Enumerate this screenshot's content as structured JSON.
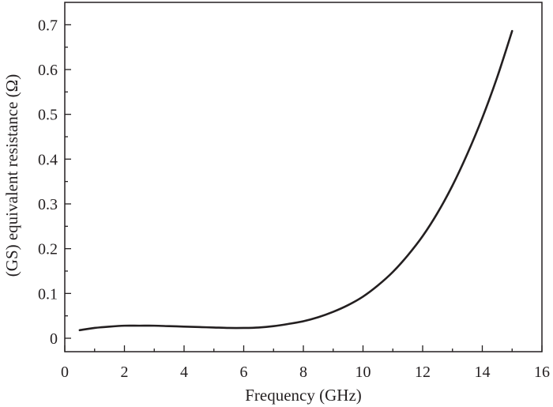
{
  "chart_data": {
    "type": "line",
    "title": "",
    "xlabel": "Frequency (GHz)",
    "ylabel": "(GS) equivalent resistance (Ω)",
    "xlim": [
      0,
      16
    ],
    "ylim": [
      -0.03,
      0.75
    ],
    "xticks": [
      0,
      2,
      4,
      6,
      8,
      10,
      12,
      14,
      16
    ],
    "yticks": [
      0,
      0.1,
      0.2,
      0.3,
      0.4,
      0.5,
      0.6,
      0.7
    ],
    "xtick_labels": [
      "0",
      "2",
      "4",
      "6",
      "8",
      "10",
      "12",
      "14",
      "16"
    ],
    "ytick_labels": [
      "0",
      "0.1",
      "0.2",
      "0.3",
      "0.4",
      "0.5",
      "0.6",
      "0.7"
    ],
    "grid": false,
    "legend": "none",
    "line_color": "#231f20",
    "series": [
      {
        "x": [
          0.5,
          1.0,
          1.5,
          2.0,
          2.5,
          3.0,
          3.5,
          4.0,
          4.5,
          5.0,
          5.5,
          6.0,
          6.5,
          7.0,
          7.5,
          8.0,
          8.5,
          9.0,
          9.5,
          10.0,
          10.5,
          11.0,
          11.5,
          12.0,
          12.5,
          13.0,
          13.5,
          14.0,
          14.5,
          15.0
        ],
        "values": [
          0.018,
          0.023,
          0.026,
          0.028,
          0.028,
          0.028,
          0.027,
          0.026,
          0.025,
          0.024,
          0.023,
          0.023,
          0.024,
          0.027,
          0.032,
          0.038,
          0.047,
          0.059,
          0.074,
          0.093,
          0.118,
          0.148,
          0.185,
          0.228,
          0.28,
          0.341,
          0.412,
          0.492,
          0.583,
          0.686
        ]
      }
    ]
  }
}
